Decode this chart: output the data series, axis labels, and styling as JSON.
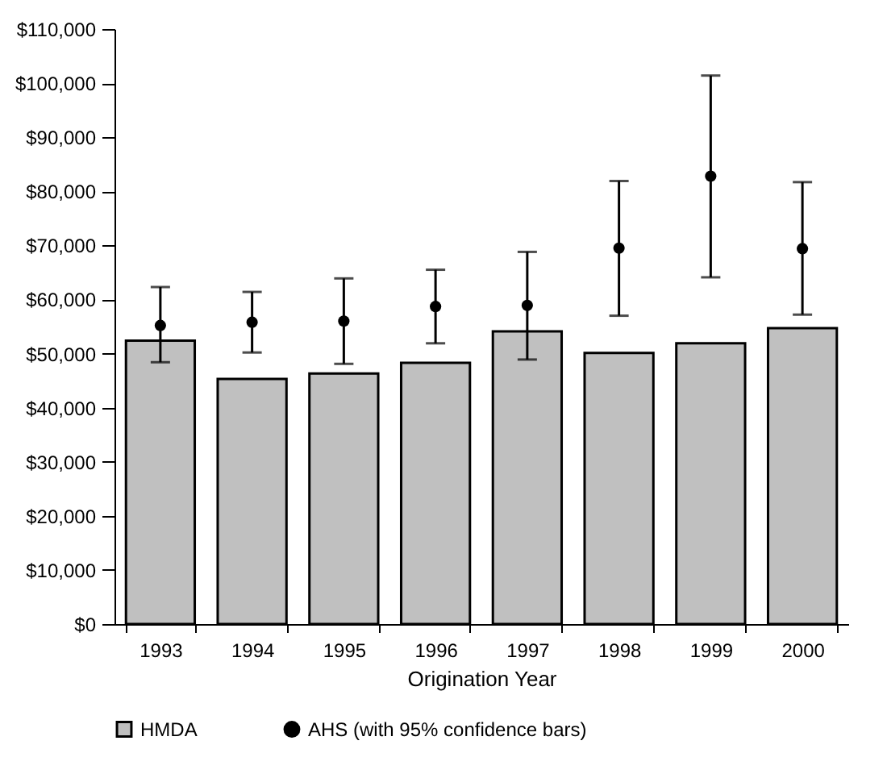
{
  "chart_data": {
    "type": "bar",
    "xlabel": "Origination Year",
    "categories": [
      "1993",
      "1994",
      "1995",
      "1996",
      "1997",
      "1998",
      "1999",
      "2000"
    ],
    "series": [
      {
        "name": "HMDA",
        "color": "#c0c0c0",
        "values": [
          52400,
          45300,
          46300,
          48300,
          54100,
          50100,
          51900,
          54700
        ]
      },
      {
        "name": "AHS (with 95% confidence bars)",
        "type": "scatter",
        "color": "#000000",
        "marker": "circle",
        "values": [
          55200,
          55800,
          56000,
          58700,
          58900,
          69500,
          82800,
          69400
        ],
        "errors": [
          [
            48400,
            62300
          ],
          [
            50200,
            61400
          ],
          [
            48100,
            63900
          ],
          [
            51900,
            65500
          ],
          [
            48900,
            68800
          ],
          [
            57000,
            81900
          ],
          [
            64100,
            101400
          ],
          [
            57200,
            81700
          ]
        ]
      }
    ],
    "ylim": [
      0,
      110000
    ],
    "yticks": [
      {
        "value": 0,
        "label": "$0"
      },
      {
        "value": 10000,
        "label": "$10,000"
      },
      {
        "value": 20000,
        "label": "$20,000"
      },
      {
        "value": 30000,
        "label": "$30,000"
      },
      {
        "value": 40000,
        "label": "$40,000"
      },
      {
        "value": 50000,
        "label": "$50,000"
      },
      {
        "value": 60000,
        "label": "$60,000"
      },
      {
        "value": 70000,
        "label": "$70,000"
      },
      {
        "value": 80000,
        "label": "$80,000"
      },
      {
        "value": 90000,
        "label": "$90,000"
      },
      {
        "value": 100000,
        "label": "$100,000"
      },
      {
        "value": 110000,
        "label": "$110,000"
      }
    ],
    "grid": false,
    "legend": "bottom"
  }
}
